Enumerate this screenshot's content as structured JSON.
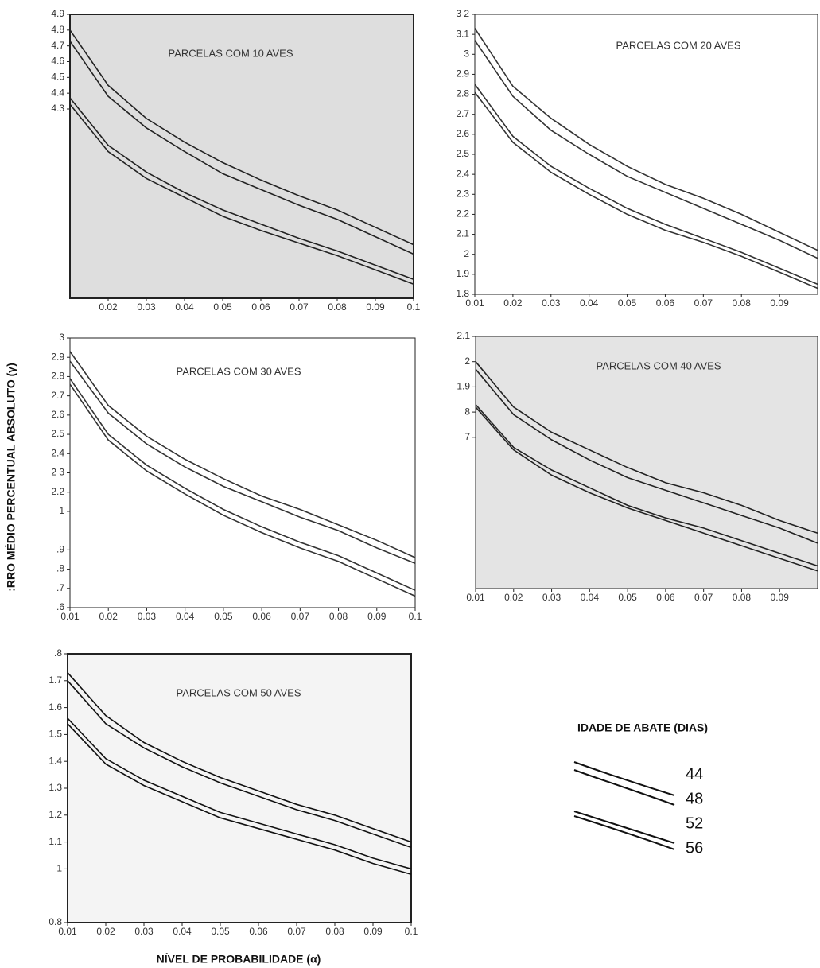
{
  "y_label": ":RRO MÉDIO PERCENTUAL ABSOLUTO (γ)",
  "x_label": "NÍVEL DE PROBABILIDADE (α)",
  "legend_title": "IDADE DE ABATE (DIAS)",
  "chart_data": [
    {
      "type": "line",
      "title": "PARCELAS COM 10 AVES",
      "x": [
        0.01,
        0.02,
        0.03,
        0.04,
        0.05,
        0.06,
        0.07,
        0.08,
        0.09,
        0.1
      ],
      "xlim": [
        0.01,
        0.1
      ],
      "xticks": [
        0.02,
        0.03,
        0.04,
        0.05,
        0.06,
        0.07,
        0.08,
        0.09,
        0.1
      ],
      "ylim": [
        3.1,
        4.9
      ],
      "yticks": [
        4.9,
        4.8,
        4.7,
        4.6,
        4.5,
        4.4,
        4.3
      ],
      "series": [
        {
          "name": "44",
          "color": "#222",
          "values": [
            4.8,
            4.45,
            4.24,
            4.09,
            3.96,
            3.85,
            3.75,
            3.66,
            3.55,
            3.44
          ]
        },
        {
          "name": "48",
          "color": "#222",
          "values": [
            4.73,
            4.38,
            4.18,
            4.03,
            3.89,
            3.79,
            3.69,
            3.6,
            3.49,
            3.38
          ]
        },
        {
          "name": "52",
          "color": "#222",
          "values": [
            4.37,
            4.07,
            3.9,
            3.77,
            3.66,
            3.57,
            3.48,
            3.4,
            3.31,
            3.22
          ]
        },
        {
          "name": "56",
          "color": "#222",
          "values": [
            4.33,
            4.03,
            3.86,
            3.74,
            3.62,
            3.53,
            3.45,
            3.37,
            3.28,
            3.19
          ]
        }
      ]
    },
    {
      "type": "line",
      "title": "PARCELAS COM 20 AVES",
      "x": [
        0.01,
        0.02,
        0.03,
        0.04,
        0.05,
        0.06,
        0.07,
        0.08,
        0.09,
        0.1
      ],
      "xlim": [
        0.01,
        0.1
      ],
      "xticks": [
        0.01,
        0.02,
        0.03,
        0.04,
        0.05,
        0.06,
        0.07,
        0.08,
        0.09
      ],
      "ylim": [
        1.8,
        3.2
      ],
      "yticks": [
        {
          "value": 3.2,
          "label": "3 2"
        },
        3.1,
        3,
        2.9,
        2.8,
        2.7,
        2.6,
        2.5,
        2.4,
        2.3,
        2.2,
        2.1,
        2,
        1.9,
        1.8
      ],
      "series": [
        {
          "name": "44",
          "color": "#333",
          "values": [
            3.13,
            2.84,
            2.68,
            2.55,
            2.44,
            2.35,
            2.28,
            2.2,
            2.11,
            2.02
          ]
        },
        {
          "name": "48",
          "color": "#333",
          "values": [
            3.07,
            2.79,
            2.62,
            2.5,
            2.39,
            2.31,
            2.23,
            2.15,
            2.07,
            1.98
          ]
        },
        {
          "name": "52",
          "color": "#333",
          "values": [
            2.85,
            2.59,
            2.44,
            2.33,
            2.23,
            2.15,
            2.08,
            2.01,
            1.93,
            1.85
          ]
        },
        {
          "name": "56",
          "color": "#333",
          "values": [
            2.81,
            2.56,
            2.41,
            2.3,
            2.2,
            2.12,
            2.06,
            1.99,
            1.91,
            1.83
          ]
        }
      ]
    },
    {
      "type": "line",
      "title": "PARCELAS COM 30 AVES",
      "x": [
        0.01,
        0.02,
        0.03,
        0.04,
        0.05,
        0.06,
        0.07,
        0.08,
        0.09,
        0.1
      ],
      "xlim": [
        0.01,
        0.1
      ],
      "xticks": [
        0.01,
        0.02,
        0.03,
        0.04,
        0.05,
        0.06,
        0.07,
        0.08,
        0.09,
        0.1
      ],
      "ylim": [
        1.6,
        3.0
      ],
      "yticks": [
        3,
        2.9,
        2.8,
        2.7,
        2.6,
        2.5,
        2.4,
        {
          "value": 2.3,
          "label": "2 3"
        },
        2.2,
        {
          "value": 2.1,
          "label": "1"
        },
        {
          "value": 1.9,
          "label": ".9"
        },
        {
          "value": 1.8,
          "label": ".8"
        },
        {
          "value": 1.7,
          "label": ".7"
        },
        {
          "value": 1.6,
          "label": ".6"
        }
      ],
      "series": [
        {
          "name": "44",
          "color": "#333",
          "values": [
            2.93,
            2.65,
            2.49,
            2.37,
            2.27,
            2.18,
            2.11,
            2.03,
            1.95,
            1.86
          ]
        },
        {
          "name": "48",
          "color": "#333",
          "values": [
            2.88,
            2.61,
            2.45,
            2.33,
            2.23,
            2.15,
            2.07,
            2.0,
            1.91,
            1.83
          ]
        },
        {
          "name": "52",
          "color": "#333",
          "values": [
            2.79,
            2.5,
            2.34,
            2.22,
            2.11,
            2.02,
            1.94,
            1.87,
            1.78,
            1.69
          ]
        },
        {
          "name": "56",
          "color": "#333",
          "values": [
            2.76,
            2.47,
            2.31,
            2.19,
            2.08,
            1.99,
            1.91,
            1.84,
            1.75,
            1.66
          ]
        }
      ]
    },
    {
      "type": "line",
      "title": "PARCELAS COM 40 AVES",
      "x": [
        0.01,
        0.02,
        0.03,
        0.04,
        0.05,
        0.06,
        0.07,
        0.08,
        0.09,
        0.1
      ],
      "xlim": [
        0.01,
        0.1
      ],
      "xticks": [
        0.01,
        0.02,
        0.03,
        0.04,
        0.05,
        0.06,
        0.07,
        0.08,
        0.09
      ],
      "ylim": [
        1.1,
        2.1
      ],
      "yticks": [
        2.1,
        2,
        1.9,
        {
          "value": 1.8,
          "label": "8"
        },
        {
          "value": 1.7,
          "label": "7"
        }
      ],
      "series": [
        {
          "name": "44",
          "color": "#222",
          "values": [
            2.0,
            1.82,
            1.72,
            1.65,
            1.58,
            1.52,
            1.48,
            1.43,
            1.37,
            1.32
          ]
        },
        {
          "name": "48",
          "color": "#222",
          "values": [
            1.97,
            1.79,
            1.69,
            1.61,
            1.54,
            1.49,
            1.44,
            1.39,
            1.34,
            1.28
          ]
        },
        {
          "name": "52",
          "color": "#222",
          "values": [
            1.83,
            1.66,
            1.57,
            1.5,
            1.43,
            1.38,
            1.34,
            1.29,
            1.24,
            1.19
          ]
        },
        {
          "name": "56",
          "color": "#222",
          "values": [
            1.82,
            1.65,
            1.55,
            1.48,
            1.42,
            1.37,
            1.32,
            1.27,
            1.22,
            1.17
          ]
        }
      ]
    },
    {
      "type": "line",
      "title": "PARCELAS COM 50 AVES",
      "x": [
        0.01,
        0.02,
        0.03,
        0.04,
        0.05,
        0.06,
        0.07,
        0.08,
        0.09,
        0.1
      ],
      "xlim": [
        0.01,
        0.1
      ],
      "xticks": [
        0.01,
        0.02,
        0.03,
        0.04,
        0.05,
        0.06,
        0.07,
        0.08,
        0.09,
        0.1
      ],
      "ylim": [
        0.8,
        1.8
      ],
      "yticks": [
        {
          "value": 1.8,
          "label": ".8"
        },
        1.7,
        1.6,
        1.5,
        1.4,
        1.3,
        1.2,
        1.1,
        1,
        0.8
      ],
      "series": [
        {
          "name": "44",
          "color": "#111",
          "values": [
            1.73,
            1.57,
            1.47,
            1.4,
            1.34,
            1.29,
            1.24,
            1.2,
            1.15,
            1.1
          ]
        },
        {
          "name": "48",
          "color": "#111",
          "values": [
            1.7,
            1.54,
            1.45,
            1.38,
            1.32,
            1.27,
            1.22,
            1.18,
            1.13,
            1.08
          ]
        },
        {
          "name": "52",
          "color": "#111",
          "values": [
            1.56,
            1.41,
            1.33,
            1.27,
            1.21,
            1.17,
            1.13,
            1.09,
            1.04,
            1.0
          ]
        },
        {
          "name": "56",
          "color": "#111",
          "values": [
            1.54,
            1.39,
            1.31,
            1.25,
            1.19,
            1.15,
            1.11,
            1.07,
            1.02,
            0.98
          ]
        }
      ]
    }
  ]
}
